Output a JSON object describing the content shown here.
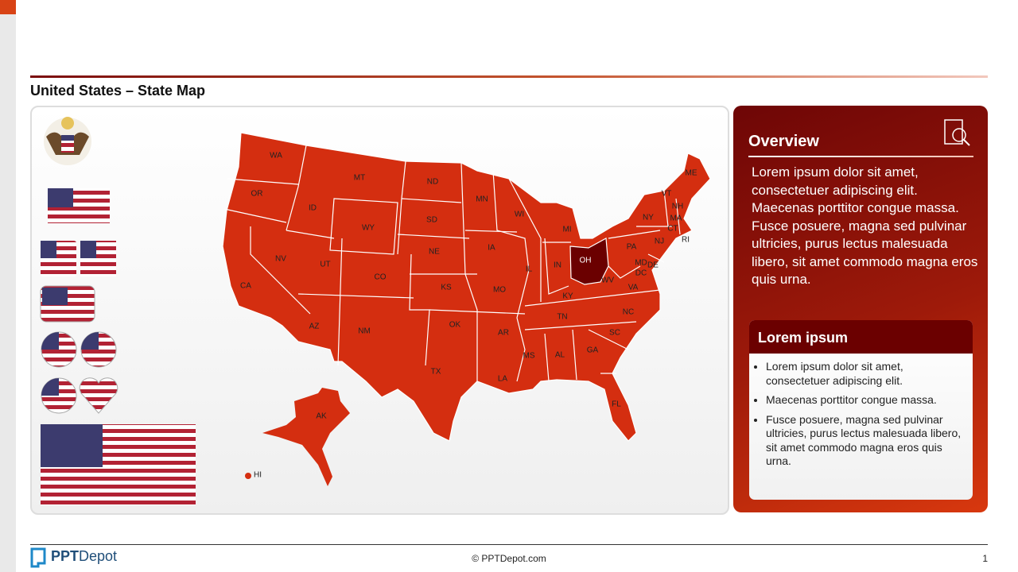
{
  "header": {
    "title": "United States – State Map"
  },
  "map": {
    "states": [
      {
        "abbr": "WA"
      },
      {
        "abbr": "OR"
      },
      {
        "abbr": "CA"
      },
      {
        "abbr": "NV"
      },
      {
        "abbr": "ID"
      },
      {
        "abbr": "MT"
      },
      {
        "abbr": "WY"
      },
      {
        "abbr": "UT"
      },
      {
        "abbr": "AZ"
      },
      {
        "abbr": "CO"
      },
      {
        "abbr": "NM"
      },
      {
        "abbr": "ND"
      },
      {
        "abbr": "SD"
      },
      {
        "abbr": "NE"
      },
      {
        "abbr": "KS"
      },
      {
        "abbr": "OK"
      },
      {
        "abbr": "TX"
      },
      {
        "abbr": "MN"
      },
      {
        "abbr": "IA"
      },
      {
        "abbr": "MO"
      },
      {
        "abbr": "AR"
      },
      {
        "abbr": "LA"
      },
      {
        "abbr": "WI"
      },
      {
        "abbr": "IL"
      },
      {
        "abbr": "MS"
      },
      {
        "abbr": "AL"
      },
      {
        "abbr": "MI"
      },
      {
        "abbr": "IN"
      },
      {
        "abbr": "OH",
        "highlighted": true
      },
      {
        "abbr": "KY"
      },
      {
        "abbr": "TN"
      },
      {
        "abbr": "GA"
      },
      {
        "abbr": "FL"
      },
      {
        "abbr": "SC"
      },
      {
        "abbr": "NC"
      },
      {
        "abbr": "VA"
      },
      {
        "abbr": "WV"
      },
      {
        "abbr": "PA"
      },
      {
        "abbr": "NY"
      },
      {
        "abbr": "VT"
      },
      {
        "abbr": "NH"
      },
      {
        "abbr": "ME"
      },
      {
        "abbr": "MA"
      },
      {
        "abbr": "CT"
      },
      {
        "abbr": "RI"
      },
      {
        "abbr": "NJ"
      },
      {
        "abbr": "MD"
      },
      {
        "abbr": "DE"
      },
      {
        "abbr": "DC"
      },
      {
        "abbr": "AK"
      },
      {
        "abbr": "HI"
      }
    ]
  },
  "overview": {
    "title": "Overview",
    "text": "Lorem ipsum dolor sit amet, consectetuer adipiscing elit. Maecenas porttitor congue massa. Fusce posuere, magna sed pulvinar ultricies, purus lectus malesuada libero, sit amet commodo magna eros quis urna."
  },
  "box": {
    "title": "Lorem ipsum",
    "bullets": [
      "Lorem ipsum dolor sit amet, consectetuer adipiscing elit.",
      "Maecenas porttitor congue massa.",
      "Fusce posuere, magna sed pulvinar ultricies, purus lectus malesuada libero, sit amet commodo magna eros quis urna."
    ]
  },
  "footer": {
    "logo_bold": "PPT",
    "logo_rest": "Depot",
    "copyright": "© PPTDepot.com",
    "page": "1"
  }
}
